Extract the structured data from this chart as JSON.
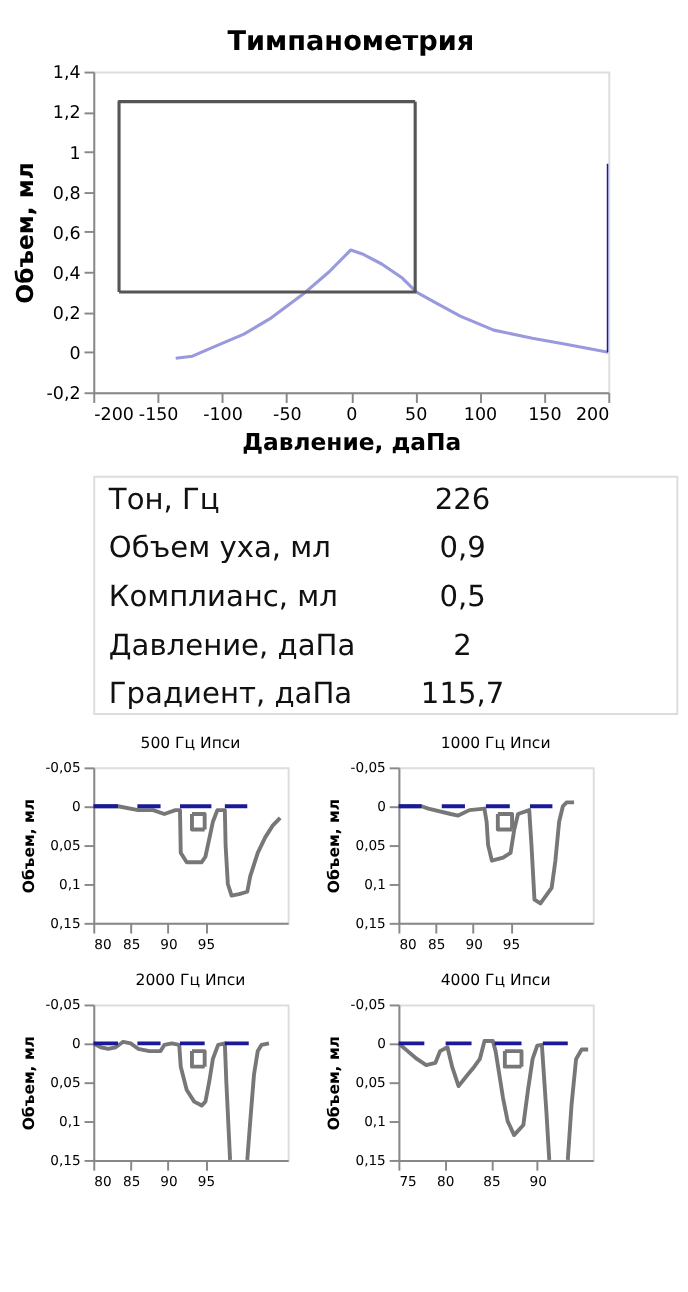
{
  "chart_data": [
    {
      "type": "line",
      "title": "Тимпанометрия",
      "xlabel": "Давление, даПа",
      "ylabel": "Объем, мл",
      "xlim": [
        -200,
        200
      ],
      "xticks": [
        -200,
        -150,
        -100,
        -50,
        0,
        50,
        100,
        150,
        200
      ],
      "ylim": [
        -0.2,
        1.4
      ],
      "yticks": [
        {
          "value": -0.2,
          "label": "-0,2"
        },
        {
          "value": 0,
          "label": "0"
        },
        {
          "value": 0.2,
          "label": "0,2"
        },
        {
          "value": 0.4,
          "label": "0,4"
        },
        {
          "value": 0.6,
          "label": "0,6"
        },
        {
          "value": 0.8,
          "label": "0,8"
        },
        {
          "value": 1,
          "label": "1"
        },
        {
          "value": 1.2,
          "label": "1,2"
        },
        {
          "value": 1.4,
          "label": "1,4"
        }
      ],
      "grid": false,
      "series": [
        {
          "color": "#9999dd",
          "x": [
            -136,
            -123,
            -105,
            -83,
            -62,
            -37,
            -17,
            0,
            9,
            24,
            40,
            51,
            65,
            85,
            111,
            141,
            167,
            200
          ],
          "values": [
            -0.03,
            -0.02,
            0.03,
            0.09,
            0.17,
            0.29,
            0.4,
            0.51,
            0.49,
            0.44,
            0.37,
            0.3,
            0.25,
            0.18,
            0.11,
            0.07,
            0.04,
            0
          ]
        },
        {
          "color": "#555555",
          "x": [
            -180,
            50,
            50
          ],
          "values": [
            0.3,
            0.3,
            1.25
          ]
        },
        {
          "color": "#555555",
          "x": [
            50,
            -180,
            -180
          ],
          "values": [
            1.25,
            1.25,
            0.3
          ]
        },
        {
          "color": "#1a1aaa",
          "x": [
            200,
            200
          ],
          "values": [
            0,
            0.94
          ]
        }
      ]
    },
    {
      "type": "other",
      "annotations": [
        "Тон, Гц",
        "226",
        "Объем уха, мл",
        "0,9",
        "Комплианс, мл",
        "0,5",
        "Давление, даПа",
        "2",
        "Градиент, даПа",
        "115,7"
      ]
    },
    {
      "type": "line",
      "title": "500 Гц Ипси",
      "ylabel": "Объем, мл",
      "xlim": [
        80,
        106
      ],
      "xticks": [
        80,
        85,
        90,
        95
      ],
      "ylim": [
        0.15,
        -0.05
      ],
      "yticks": [
        {
          "value": -0.05,
          "label": "-0,05"
        },
        {
          "value": 0,
          "label": "0"
        },
        {
          "value": 0.05,
          "label": "0,05"
        },
        {
          "value": 0.1,
          "label": "0,1"
        },
        {
          "value": 0.15,
          "label": "0,15"
        }
      ],
      "grid": false,
      "series": [
        {
          "color": "#777777",
          "x": [
            80,
            83.3,
            86,
            88,
            89.5,
            91,
            91.6,
            91.7,
            92.5,
            94.5,
            95,
            96,
            96.6,
            97.6,
            97.7,
            98,
            98.5,
            99.5,
            100.6,
            101,
            102,
            103,
            104,
            105
          ],
          "values": [
            0,
            0,
            0.005,
            0.005,
            0.01,
            0.005,
            0.005,
            0.06,
            0.072,
            0.072,
            0.065,
            0.02,
            0.005,
            0.005,
            0.05,
            0.1,
            0.115,
            0.113,
            0.11,
            0.09,
            0.06,
            0.04,
            0.025,
            0.015
          ]
        },
        {
          "color": "#777777",
          "x": [
            93.2,
            94.9,
            94.9
          ],
          "values": [
            0.01,
            0.01,
            0.03
          ]
        },
        {
          "color": "#777777",
          "x": [
            94.9,
            93.2,
            93.2
          ],
          "values": [
            0.03,
            0.03,
            0.01
          ]
        },
        {
          "color": "#1a1a99",
          "x": [
            80,
            83.3,
            83.4,
            85.9,
            89,
            89.1,
            91.6,
            95.8,
            95.9,
            97.6,
            100.6
          ],
          "values": [
            0,
            0,
            null,
            0,
            0,
            null,
            0,
            0,
            null,
            0,
            0
          ]
        }
      ]
    },
    {
      "type": "line",
      "title": "1000 Гц Ипси",
      "ylabel": "Объем, мл",
      "xlim": [
        80,
        106
      ],
      "xticks": [
        80,
        85,
        90,
        95
      ],
      "ylim": [
        0.15,
        -0.05
      ],
      "yticks": [
        {
          "value": -0.05,
          "label": "-0,05"
        },
        {
          "value": 0,
          "label": "0"
        },
        {
          "value": 0.05,
          "label": "0,05"
        },
        {
          "value": 0.1,
          "label": "0,1"
        },
        {
          "value": 0.15,
          "label": "0,15"
        }
      ],
      "grid": false,
      "series": [
        {
          "color": "#777777",
          "x": [
            80,
            83.1,
            84,
            87,
            88,
            89.5,
            91.5,
            91.8,
            92,
            92.5,
            94,
            95,
            95.5,
            96,
            97.5,
            97.8,
            98.2,
            99,
            100.5,
            101,
            101.5,
            102,
            102.5,
            103.5
          ],
          "values": [
            0,
            0,
            0.003,
            0.01,
            0.012,
            0.005,
            0.003,
            0.02,
            0.05,
            0.07,
            0.066,
            0.06,
            0.03,
            0.01,
            0.005,
            0.05,
            0.12,
            0.125,
            0.105,
            0.07,
            0.02,
            0,
            -0.005,
            -0.005
          ]
        },
        {
          "color": "#777777",
          "x": [
            93.3,
            95.2,
            95.2
          ],
          "values": [
            0.01,
            0.01,
            0.03
          ]
        },
        {
          "color": "#777777",
          "x": [
            95.2,
            93.3,
            93.3
          ],
          "values": [
            0.03,
            0.03,
            0.01
          ]
        },
        {
          "color": "#1a1a99",
          "x": [
            80,
            83.1,
            83.2,
            85.8,
            88.9,
            89,
            91.7,
            94.9,
            95,
            97.6,
            100.6
          ],
          "values": [
            0,
            0,
            null,
            0,
            0,
            null,
            0,
            0,
            null,
            0,
            0
          ]
        }
      ]
    },
    {
      "type": "line",
      "title": "2000 Гц Ипси",
      "ylabel": "Объем, мл",
      "xlim": [
        80,
        106
      ],
      "xticks": [
        80,
        85,
        90,
        95
      ],
      "ylim": [
        0.15,
        -0.05
      ],
      "yticks": [
        {
          "value": -0.05,
          "label": "-0,05"
        },
        {
          "value": 0,
          "label": "0"
        },
        {
          "value": 0.05,
          "label": "0,05"
        },
        {
          "value": 0.1,
          "label": "0,1"
        },
        {
          "value": 0.15,
          "label": "0,15"
        }
      ],
      "grid": false,
      "series": [
        {
          "color": "#777777",
          "x": [
            80,
            81,
            82,
            83,
            84,
            85,
            86,
            87.5,
            89,
            89.5,
            90.5,
            91.5,
            91.7,
            92.5,
            93.5,
            94.5,
            95,
            95.5,
            96,
            96.7,
            97.6,
            97.8,
            98.3,
            98.5,
            100.6,
            101,
            101.5,
            102,
            102.5,
            103.5
          ],
          "values": [
            0,
            0.005,
            0.007,
            0.005,
            -0.002,
            0,
            0.007,
            0.01,
            0.01,
            0.002,
            0,
            0.002,
            0.03,
            0.06,
            0.075,
            0.08,
            0.075,
            0.05,
            0.02,
            0.002,
            0,
            0.05,
            0.15,
            null,
            0.15,
            0.1,
            0.04,
            0.01,
            0.002,
            0
          ]
        },
        {
          "color": "#777777",
          "x": [
            93.2,
            94.9,
            94.9
          ],
          "values": [
            0.01,
            0.01,
            0.03
          ]
        },
        {
          "color": "#777777",
          "x": [
            94.9,
            93.2,
            93.2
          ],
          "values": [
            0.03,
            0.03,
            0.01
          ]
        },
        {
          "color": "#1a1a99",
          "x": [
            80,
            83.3,
            83.4,
            85.9,
            89,
            89.1,
            91.6,
            94.9,
            95,
            97.6,
            100.8
          ],
          "values": [
            0,
            0,
            null,
            0,
            0,
            null,
            0,
            0,
            null,
            0,
            0
          ]
        }
      ]
    },
    {
      "type": "line",
      "title": "4000 Гц Ипси",
      "ylabel": "Объем, мл",
      "xlim": [
        75,
        96
      ],
      "xticks": [
        75,
        80,
        85,
        90
      ],
      "ylim": [
        0.15,
        -0.05
      ],
      "yticks": [
        {
          "value": -0.05,
          "label": "-0,05"
        },
        {
          "value": 0,
          "label": "0"
        },
        {
          "value": 0.05,
          "label": "0,05"
        },
        {
          "value": 0.1,
          "label": "0,1"
        },
        {
          "value": 0.15,
          "label": "0,15"
        }
      ],
      "grid": false,
      "series": [
        {
          "color": "#777777",
          "x": [
            75,
            76,
            77,
            78,
            79,
            79.5,
            80.3,
            80.8,
            81.5,
            82.5,
            83.2,
            83.8,
            84.3,
            85.2,
            85.5,
            86.3,
            86.8,
            87.5,
            88.5,
            89,
            89.5,
            90,
            90.5,
            91,
            91.3,
            91.4,
            93.3,
            93.7,
            94.2,
            94.8,
            95.5
          ],
          "values": [
            0,
            0.01,
            0.02,
            0.028,
            0.025,
            0.01,
            0.005,
            0.03,
            0.055,
            0.04,
            0.03,
            0.02,
            -0.003,
            -0.003,
            0.01,
            0.07,
            0.1,
            0.118,
            0.105,
            0.06,
            0.02,
            0.003,
            0.002,
            0.09,
            0.15,
            null,
            0.15,
            0.08,
            0.02,
            0.008,
            0.008
          ]
        },
        {
          "color": "#777777",
          "x": [
            86.5,
            88.3,
            88.3
          ],
          "values": [
            0.01,
            0.01,
            0.03
          ]
        },
        {
          "color": "#777777",
          "x": [
            88.3,
            86.5,
            86.5
          ],
          "values": [
            0.03,
            0.03,
            0.01
          ]
        },
        {
          "color": "#1a1a99",
          "x": [
            75,
            77.8,
            77.9,
            80.1,
            82.9,
            83,
            85.4,
            88.3,
            88.4,
            90.6,
            93.3
          ],
          "values": [
            0,
            0,
            null,
            0,
            0,
            null,
            0,
            0,
            null,
            0,
            0
          ]
        }
      ]
    }
  ]
}
